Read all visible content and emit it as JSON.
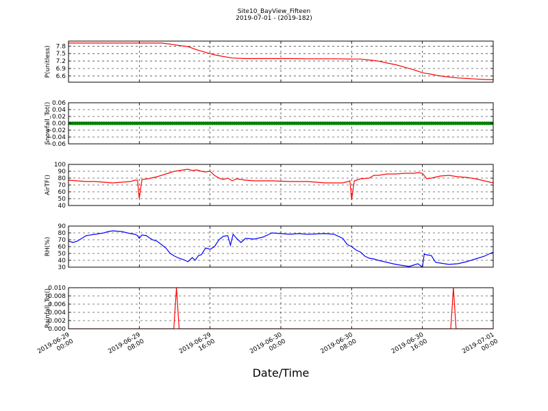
{
  "figure": {
    "title_line1": "Site10_BayView_Fifteen",
    "title_line2": "2019-07-01 - (2019-182)",
    "xlabel": "Date/Time"
  },
  "x_ticks": [
    {
      "value": 0,
      "line1": "2019-06-29",
      "line2": "00:00"
    },
    {
      "value": 8,
      "line1": "2019-06-29",
      "line2": "08:00"
    },
    {
      "value": 16,
      "line1": "2019-06-29",
      "line2": "16:00"
    },
    {
      "value": 24,
      "line1": "2019-06-30",
      "line2": "00:00"
    },
    {
      "value": 32,
      "line1": "2019-06-30",
      "line2": "08:00"
    },
    {
      "value": 40,
      "line1": "2019-06-30",
      "line2": "16:00"
    },
    {
      "value": 48,
      "line1": "2019-07-01",
      "line2": "00:00"
    }
  ],
  "chart_data": [
    {
      "type": "line",
      "ylabel": "P(unitless)",
      "ylim": [
        6.35,
        8.0
      ],
      "yticks": [
        "7.8",
        "7.5",
        "7.2",
        "6.9",
        "6.6"
      ],
      "ytick_values": [
        7.8,
        7.5,
        7.2,
        6.9,
        6.6
      ],
      "grid": true,
      "series": [
        {
          "color": "#ff0000",
          "x": [
            0,
            3,
            6,
            9,
            10.5,
            11.5,
            12.5,
            13.5,
            14.5,
            15.5,
            16.5,
            17.5,
            18.5,
            20,
            22,
            25,
            27,
            30,
            32,
            33,
            34,
            35,
            36,
            37,
            38,
            39,
            40,
            40.5,
            41,
            42,
            43,
            44,
            45,
            46,
            47,
            48
          ],
          "y": [
            7.92,
            7.92,
            7.92,
            7.92,
            7.92,
            7.88,
            7.82,
            7.78,
            7.65,
            7.55,
            7.45,
            7.38,
            7.32,
            7.3,
            7.3,
            7.3,
            7.29,
            7.29,
            7.28,
            7.28,
            7.24,
            7.2,
            7.12,
            7.05,
            6.95,
            6.85,
            6.73,
            6.7,
            6.67,
            6.6,
            6.56,
            6.52,
            6.5,
            6.48,
            6.46,
            6.45
          ]
        }
      ]
    },
    {
      "type": "scatter",
      "ylabel": "Snowfall_Tot()",
      "ylim": [
        -0.06,
        0.06
      ],
      "yticks": [
        "0.06",
        "0.04",
        "0.02",
        "0.00",
        "−0.02",
        "−0.04",
        "−0.06"
      ],
      "ytick_values": [
        0.06,
        0.04,
        0.02,
        0.0,
        -0.02,
        -0.04,
        -0.06
      ],
      "grid": true,
      "series": [
        {
          "color": "#008000",
          "marker": "circle",
          "x_start": 0,
          "x_end": 48,
          "x_step": 0.25,
          "value": 0.0
        }
      ]
    },
    {
      "type": "line",
      "ylabel": "AirTF()",
      "ylim": [
        40,
        100
      ],
      "yticks": [
        "100",
        "90",
        "80",
        "70",
        "60",
        "50",
        "40"
      ],
      "ytick_values": [
        100,
        90,
        80,
        70,
        60,
        50,
        40
      ],
      "grid": true,
      "series": [
        {
          "color": "#ff0000",
          "x": [
            0,
            2,
            3,
            4,
            5,
            6,
            7,
            7.5,
            7.8,
            8,
            8.3,
            9,
            10,
            11,
            11.5,
            12,
            12.5,
            13,
            13.5,
            14,
            14.5,
            15,
            15.5,
            16,
            16.5,
            17,
            17.5,
            18,
            18.5,
            19,
            20,
            21,
            23,
            25,
            27,
            28,
            29,
            31,
            31.6,
            31.8,
            32,
            32.3,
            33,
            34,
            34.5,
            35,
            36,
            37,
            38,
            39,
            39.5,
            40,
            40.5,
            41,
            42,
            43,
            44,
            45,
            46,
            47,
            48
          ],
          "y": [
            77,
            75,
            75,
            74,
            73,
            74,
            75,
            77,
            77,
            50,
            78,
            79,
            82,
            86,
            88,
            90,
            91,
            92,
            93,
            91,
            92,
            90,
            89,
            90,
            84,
            80,
            78,
            80,
            76,
            79,
            77,
            76,
            76,
            75,
            75,
            74,
            73,
            73,
            75,
            76,
            48,
            76,
            79,
            80,
            84,
            84,
            86,
            86,
            87,
            87,
            88,
            87,
            79,
            80,
            83,
            84,
            82,
            81,
            79,
            76,
            73
          ]
        }
      ]
    },
    {
      "type": "line",
      "ylabel": "RH(%)",
      "ylim": [
        30,
        90
      ],
      "yticks": [
        "90",
        "80",
        "70",
        "60",
        "50",
        "40",
        "30"
      ],
      "ytick_values": [
        90,
        80,
        70,
        60,
        50,
        40,
        30
      ],
      "grid": true,
      "series": [
        {
          "color": "#0000ff",
          "x": [
            0,
            0.5,
            1,
            2,
            3,
            4,
            4.5,
            5,
            6,
            7,
            7.5,
            7.8,
            8,
            8.3,
            8.8,
            9,
            9.5,
            10,
            10.5,
            11,
            11.5,
            12,
            12.5,
            13,
            13.5,
            14,
            14.3,
            14.7,
            15,
            15.5,
            16,
            16.5,
            17,
            17.5,
            18,
            18.3,
            18.6,
            19,
            19.5,
            20,
            21,
            22,
            23,
            25,
            26,
            27,
            29,
            30,
            31,
            31.5,
            32,
            32.5,
            33,
            33.5,
            34,
            34.5,
            35,
            36,
            37,
            38,
            38.5,
            39,
            39.5,
            40,
            40.2,
            40.5,
            41,
            41.5,
            42,
            43,
            44,
            45,
            46,
            47,
            48
          ],
          "y": [
            68,
            66,
            68,
            76,
            78,
            80,
            82,
            83,
            82,
            79,
            78,
            76,
            72,
            77,
            76,
            74,
            70,
            68,
            63,
            58,
            50,
            46,
            43,
            41,
            38,
            44,
            40,
            47,
            48,
            58,
            56,
            60,
            70,
            75,
            76,
            62,
            78,
            72,
            66,
            72,
            71,
            74,
            80,
            78,
            79,
            78,
            79,
            78,
            72,
            63,
            60,
            55,
            52,
            46,
            43,
            42,
            40,
            37,
            34,
            32,
            31,
            33,
            35,
            30,
            49,
            48,
            47,
            37,
            36,
            34,
            35,
            38,
            42,
            46,
            52
          ]
        }
      ]
    },
    {
      "type": "line",
      "ylabel": "Rainfall_Tot()",
      "ylim": [
        0.0,
        0.01
      ],
      "yticks": [
        "0.010",
        "0.008",
        "0.006",
        "0.004",
        "0.002",
        "0.000"
      ],
      "ytick_values": [
        0.01,
        0.008,
        0.006,
        0.004,
        0.002,
        0.0
      ],
      "grid": true,
      "series": [
        {
          "color": "#ff0000",
          "x": [
            0,
            11.9,
            12.2,
            12.5,
            43.2,
            43.5,
            43.8,
            48
          ],
          "y": [
            0,
            0,
            0.01,
            0,
            0,
            0.01,
            0,
            0
          ]
        }
      ]
    }
  ]
}
